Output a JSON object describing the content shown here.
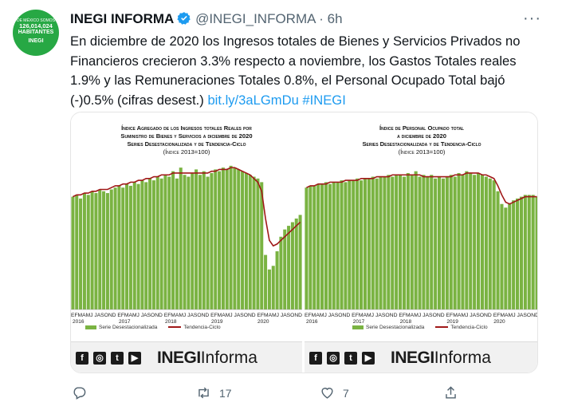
{
  "avatar": {
    "line1": "DE MÉXICO SOMOS",
    "line2": "126,014,024",
    "line3": "HABITANTES",
    "line4": "INEGI"
  },
  "tweet": {
    "name": "INEGI INFORMA",
    "handle": "@INEGI_INFORMA",
    "separator": "·",
    "time": "6h",
    "more": "···",
    "text": "En diciembre de 2020 los Ingresos totales de Bienes y Servicios Privados no Financieros crecieron 3.3% respecto a noviembre, los Gastos Totales reales 1.9% y las Remuneraciones Totales 0.8%, el Personal Ocupado Total bajó (-)0.5% (cifras desest.) ",
    "link": "bit.ly/3aLGmDu",
    "hashtag": "#INEGI",
    "reply_count": "",
    "retweet_count": "17",
    "like_count": "7"
  },
  "colors": {
    "bar": "#7ab342",
    "trend": "#a01818",
    "link": "#1d9bf0",
    "avatar": "#27a844"
  },
  "charts": {
    "left": {
      "title1": "Índice Agregado de los Ingresos totales Reales por",
      "title2": "Suministro de Bienes y Servicios a diciembre de 2020",
      "title3": "Series Desestacionalizada y de Tendencia-Ciclo",
      "title4": "(Índice 2013=100)",
      "month_ticks": "EFMAMJ JASOND EFMAMJ JASOND EFMAMJ JASOND EFMAMJ JASOND EFMAMJ JASOND",
      "years": [
        "2016",
        "2017",
        "2018",
        "2019",
        "2020"
      ],
      "legend_series": "Serie Desestacionalizada",
      "legend_trend": "Tendencia-Ciclo"
    },
    "right": {
      "title1": "Índice de Personal Ocupado total",
      "title2": "a diciembre de 2020",
      "title3": "Series Desestacionalizada y de Tendencia-Ciclo",
      "title4": "(Índice 2013=100)",
      "month_ticks": "EFMAMJ JASOND EFMAMJ JASOND EFMAMJ JASOND EFMAMJ JASOND EFMAMJ JASOND",
      "years": [
        "2016",
        "2017",
        "2018",
        "2019",
        "2020"
      ],
      "legend_series": "Serie Desestacionalizada",
      "legend_trend": "Tendencia-Ciclo"
    }
  },
  "footer": {
    "icons": [
      "facebook-icon",
      "instagram-icon",
      "twitter-icon",
      "youtube-icon"
    ],
    "brand_bold": "INEGI",
    "brand_light": "Informa"
  },
  "chart_data": [
    {
      "type": "bar",
      "title": "Índice Agregado de los Ingresos totales Reales por Suministro de Bienes y Servicios a diciembre de 2020",
      "subtitle": "Series Desestacionalizada y de Tendencia-Ciclo (Índice 2013=100)",
      "x_range": [
        "2016-01",
        "2020-12"
      ],
      "series": [
        {
          "name": "Serie Desestacionalizada",
          "values": [
            102,
            103,
            101,
            104,
            103,
            105,
            104,
            106,
            105,
            104,
            106,
            107,
            108,
            107,
            109,
            108,
            110,
            109,
            111,
            110,
            112,
            111,
            113,
            112,
            114,
            113,
            116,
            112,
            118,
            114,
            113,
            115,
            117,
            114,
            116,
            113,
            115,
            117,
            116,
            118,
            117,
            119,
            118,
            117,
            116,
            115,
            114,
            113,
            112,
            110,
            70,
            62,
            64,
            72,
            80,
            84,
            86,
            88,
            90,
            92
          ]
        },
        {
          "name": "Tendencia-Ciclo",
          "values": [
            102,
            103,
            103,
            104,
            104,
            105,
            105,
            106,
            106,
            106,
            107,
            108,
            108,
            109,
            109,
            110,
            110,
            111,
            111,
            112,
            112,
            113,
            113,
            114,
            114,
            114,
            115,
            115,
            115,
            115,
            115,
            115,
            115,
            115,
            115,
            115,
            116,
            116,
            117,
            117,
            117,
            118,
            118,
            117,
            116,
            115,
            114,
            112,
            110,
            105,
            90,
            78,
            75,
            76,
            78,
            80,
            82,
            84,
            86,
            88
          ]
        }
      ]
    },
    {
      "type": "bar",
      "title": "Índice de Personal Ocupado total a diciembre de 2020",
      "subtitle": "Series Desestacionalizada y de Tendencia-Ciclo (Índice 2013=100)",
      "x_range": [
        "2016-01",
        "2020-12"
      ],
      "series": [
        {
          "name": "Serie Desestacionalizada",
          "values": [
            107,
            108,
            108,
            109,
            109,
            110,
            109,
            110,
            110,
            111,
            110,
            111,
            111,
            112,
            111,
            112,
            112,
            113,
            112,
            113,
            113,
            114,
            113,
            114,
            114,
            113,
            115,
            114,
            116,
            113,
            114,
            113,
            114,
            112,
            113,
            112,
            113,
            114,
            113,
            115,
            114,
            116,
            115,
            114,
            115,
            114,
            113,
            112,
            111,
            105,
            98,
            96,
            98,
            100,
            101,
            102,
            103,
            103,
            103,
            102
          ]
        },
        {
          "name": "Tendencia-Ciclo",
          "values": [
            107,
            108,
            108,
            109,
            109,
            109,
            110,
            110,
            110,
            110,
            111,
            111,
            111,
            111,
            112,
            112,
            112,
            112,
            113,
            113,
            113,
            113,
            114,
            114,
            114,
            114,
            114,
            114,
            114,
            114,
            113,
            113,
            113,
            113,
            113,
            113,
            113,
            113,
            114,
            114,
            114,
            115,
            115,
            115,
            115,
            114,
            114,
            113,
            112,
            108,
            103,
            99,
            98,
            99,
            100,
            101,
            102,
            102,
            102,
            102
          ]
        }
      ]
    }
  ]
}
